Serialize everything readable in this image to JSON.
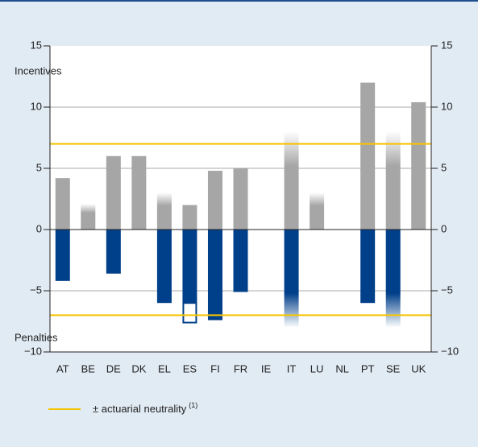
{
  "chart_data": {
    "type": "bar",
    "categories": [
      "AT",
      "BE",
      "DE",
      "DK",
      "EL",
      "ES",
      "FI",
      "FR",
      "IE",
      "IT",
      "LU",
      "NL",
      "PT",
      "SE",
      "UK"
    ],
    "series": [
      {
        "color": "#a6a6a6",
        "values": [
          4.2,
          2.1,
          6.0,
          6.0,
          3.0,
          2.0,
          4.8,
          5.0,
          null,
          8.0,
          3.0,
          null,
          12.0,
          8.0,
          10.4
        ],
        "fade": [
          false,
          true,
          false,
          false,
          true,
          false,
          false,
          false,
          false,
          true,
          true,
          false,
          false,
          true,
          false
        ]
      },
      {
        "color": "#003f8a",
        "values": [
          -4.2,
          null,
          -3.6,
          null,
          -6.0,
          -6.0,
          -7.4,
          -5.1,
          null,
          -8.0,
          null,
          null,
          -6.0,
          -8.0,
          null
        ],
        "fade": [
          false,
          false,
          false,
          false,
          false,
          false,
          false,
          false,
          false,
          true,
          false,
          false,
          false,
          true,
          false
        ]
      },
      {
        "color": "#003f8a",
        "style": "outline",
        "values": [
          null,
          null,
          null,
          null,
          null,
          -1.6,
          null,
          null,
          null,
          null,
          null,
          null,
          null,
          null,
          null
        ]
      }
    ],
    "reference_lines": {
      "name": "± actuarial neutrality",
      "note": "(1)",
      "color": "#f5c400",
      "values": [
        7,
        -7
      ]
    },
    "annotations": [
      "Incentives",
      "Penalties"
    ],
    "ylim": [
      -10,
      15
    ],
    "yticks": [
      {
        "value": -10,
        "label": "−10"
      },
      {
        "value": -5,
        "label": "−5"
      },
      0,
      5,
      10,
      15
    ],
    "y2lim": [
      -10,
      15
    ],
    "y2ticks": [
      {
        "value": -10,
        "label": "−10"
      },
      {
        "value": -5,
        "label": "−5"
      },
      0,
      5,
      10,
      15
    ],
    "grid": true
  }
}
